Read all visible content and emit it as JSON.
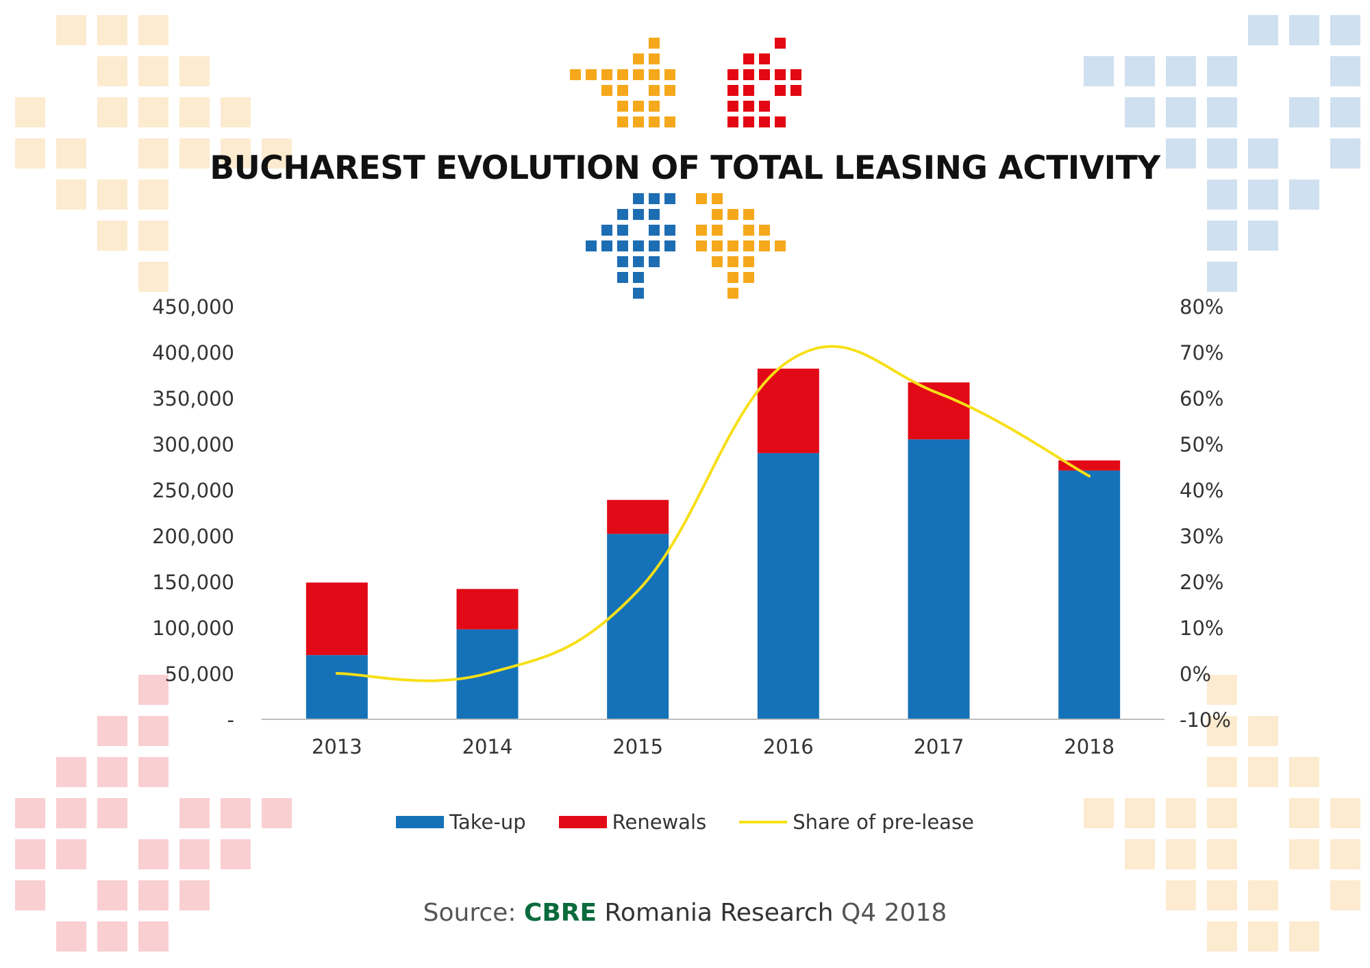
{
  "title": "BUCHAREST EVOLUTION OF TOTAL LEASING ACTIVITY",
  "colors": {
    "takeup": "#1572b8",
    "renewals": "#e20a17",
    "preLease": "#f7df17",
    "deco_orange": "#f6a81c",
    "deco_red": "#e30613",
    "deco_blue": "#1d6db3",
    "deco_fade_orange": "#fdebd0",
    "deco_fade_blue": "#cfe0f0",
    "deco_fade_red": "#f9cfd2",
    "axis_text": "#333333",
    "cbre_green": "#0a6b3c"
  },
  "legend": {
    "takeup": "Take-up",
    "renewals": "Renewals",
    "preLease": "Share of pre-lease"
  },
  "source": {
    "prefix": "Source:",
    "brand": "CBRE",
    "dept": "Romania Research",
    "period": "Q4 2018"
  },
  "chart_data": {
    "type": "bar",
    "stacked": true,
    "categories": [
      "2013",
      "2014",
      "2015",
      "2016",
      "2017",
      "2018"
    ],
    "series": [
      {
        "name": "Take-up",
        "type": "bar",
        "axis": "left",
        "values": [
          70000,
          98000,
          202000,
          290000,
          305000,
          271000
        ]
      },
      {
        "name": "Renewals",
        "type": "bar",
        "axis": "left",
        "values": [
          79000,
          44000,
          37000,
          92000,
          62000,
          11000
        ]
      },
      {
        "name": "Share of pre-lease",
        "type": "line",
        "axis": "right",
        "values": [
          0.0,
          0.0,
          0.18,
          0.68,
          0.61,
          0.43
        ]
      }
    ],
    "y_left": {
      "ylim": [
        0,
        450000
      ],
      "ticks": [
        0,
        50000,
        100000,
        150000,
        200000,
        250000,
        300000,
        350000,
        400000,
        450000
      ],
      "tick_labels": [
        "-",
        "50,000",
        "100,000",
        "150,000",
        "200,000",
        "250,000",
        "300,000",
        "350,000",
        "400,000",
        "450,000"
      ]
    },
    "y_right": {
      "ylim": [
        -0.1,
        0.8
      ],
      "ticks": [
        -0.1,
        0.0,
        0.1,
        0.2,
        0.3,
        0.4,
        0.5,
        0.6,
        0.7,
        0.8
      ],
      "tick_labels": [
        "-10%",
        "0%",
        "10%",
        "20%",
        "30%",
        "40%",
        "50%",
        "60%",
        "70%",
        "80%"
      ]
    },
    "grid": false,
    "legend_position": "bottom"
  }
}
